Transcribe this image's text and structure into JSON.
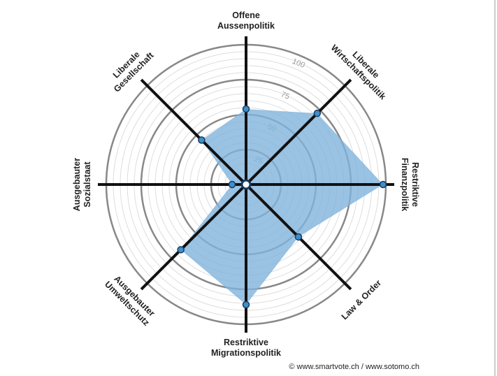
{
  "chart_data": {
    "type": "radar",
    "categories": [
      [
        "Offene",
        "Aussenpolitik"
      ],
      [
        "Liberale",
        "Wirtschaftspolitik"
      ],
      [
        "Restriktive",
        "Finanzpolitik"
      ],
      [
        "Law & Order"
      ],
      [
        "Restriktive",
        "Migrationspolitik"
      ],
      [
        "Ausgebauter",
        "Umweltschutz"
      ],
      [
        "Ausgebauter",
        "Sozialstaat"
      ],
      [
        "Liberale",
        "Gesellschaft"
      ]
    ],
    "values": [
      54,
      72,
      98,
      53,
      86,
      66,
      10,
      45
    ],
    "color": "#7fb3dc",
    "marker_color": "#3d8fcc",
    "rlim": [
      0,
      100
    ],
    "rticks": [
      25,
      50,
      75,
      100
    ],
    "minor_grid_step": 5,
    "grid": true,
    "source": "© www.smartvote.ch / www.sotomo.ch"
  }
}
